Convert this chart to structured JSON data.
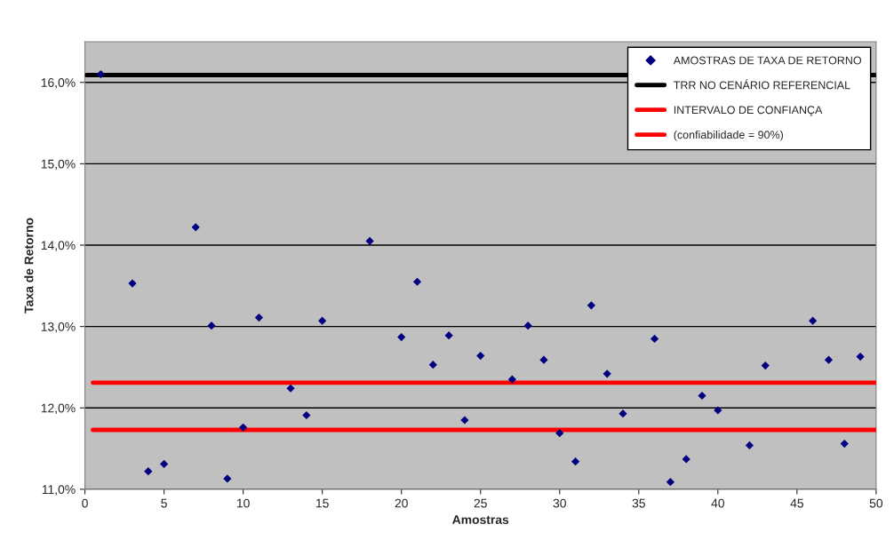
{
  "chart_data": {
    "type": "scatter",
    "xlabel": "Amostras",
    "ylabel": "Taxa de Retorno",
    "series": [
      {
        "name": "AMOSTRAS DE TAXA DE RETORNO",
        "color": "#000080",
        "marker": "diamond",
        "x": [
          1,
          3,
          4,
          5,
          7,
          8,
          9,
          10,
          11,
          13,
          14,
          15,
          18,
          20,
          21,
          22,
          23,
          24,
          25,
          27,
          28,
          29,
          30,
          31,
          32,
          33,
          34,
          36,
          37,
          38,
          39,
          40,
          42,
          43,
          46,
          47,
          48,
          49
        ],
        "values": [
          16.1,
          13.53,
          11.22,
          11.31,
          14.22,
          13.01,
          11.13,
          11.76,
          13.11,
          12.24,
          11.91,
          13.07,
          14.05,
          12.87,
          13.55,
          12.53,
          12.89,
          11.85,
          12.64,
          12.35,
          13.01,
          12.59,
          11.69,
          11.34,
          13.26,
          12.42,
          11.93,
          12.85,
          11.09,
          11.37,
          12.15,
          11.97,
          11.54,
          12.52,
          13.07,
          12.59,
          11.56,
          12.63
        ]
      },
      {
        "name": "TRR NO CENÁRIO REFERENCIAL",
        "color": "#000000",
        "type": "line",
        "x": [
          0.1,
          50
        ],
        "values": [
          16.09,
          16.09
        ]
      },
      {
        "name": "INTERVALO DE CONFIANÇA",
        "color": "#ff0000",
        "type": "line",
        "x": [
          0.5,
          50
        ],
        "values": [
          12.31,
          12.31
        ]
      },
      {
        "name": "(confiabilidade = 90%)",
        "color": "#ff0000",
        "type": "line",
        "x": [
          0.5,
          50
        ],
        "values": [
          11.73,
          11.73
        ]
      }
    ],
    "marker": "none",
    "line_style": "solid",
    "xlim": [
      0,
      50
    ],
    "xticks": [
      0,
      5,
      10,
      15,
      20,
      25,
      30,
      35,
      40,
      45,
      50
    ],
    "ylim": [
      11,
      16.5
    ],
    "yticks": [
      {
        "value": 11,
        "label": "11,0%"
      },
      {
        "value": 12,
        "label": "12,0%"
      },
      {
        "value": 13,
        "label": "13,0%"
      },
      {
        "value": 14,
        "label": "14,0%"
      },
      {
        "value": 15,
        "label": "15,0%"
      },
      {
        "value": 16,
        "label": "16,0%"
      }
    ],
    "grid": "y",
    "legend": "top right"
  }
}
